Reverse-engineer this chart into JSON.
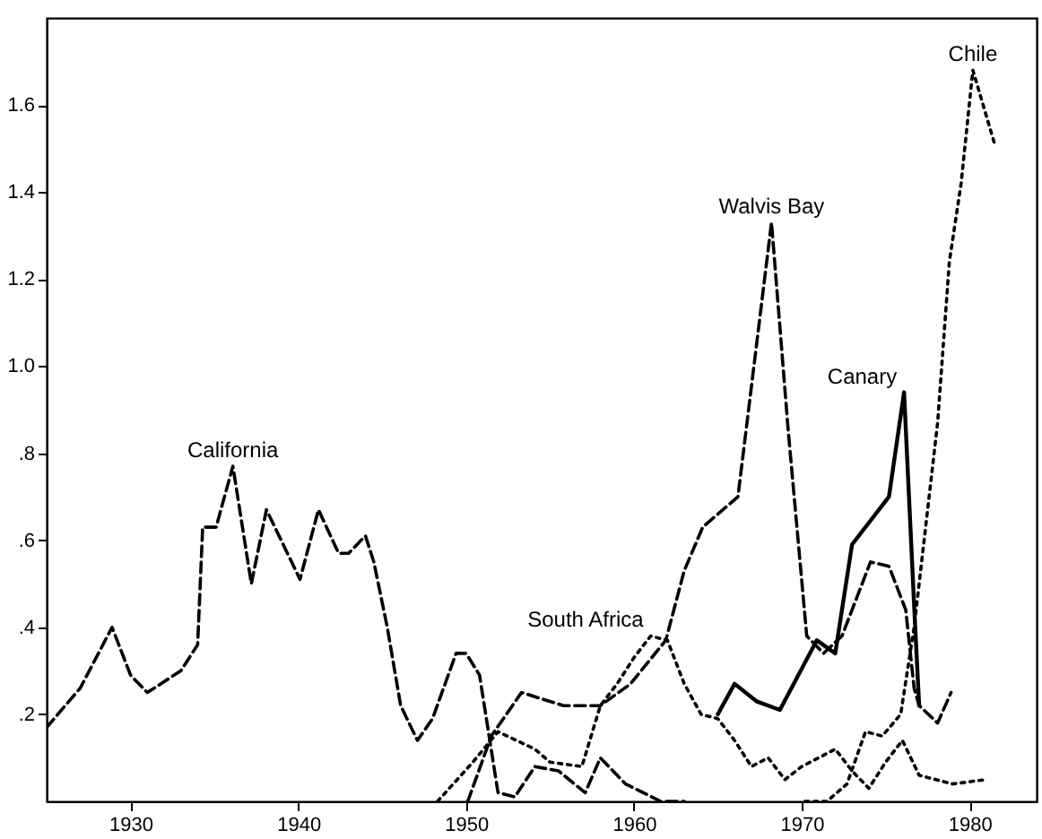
{
  "chart_data": {
    "type": "line",
    "xlim": [
      1925,
      1984
    ],
    "ylim": [
      0,
      1.8
    ],
    "xticks": [
      1930,
      1940,
      1950,
      1960,
      1970,
      1980
    ],
    "yticks": [
      {
        "value": 0.2,
        "label": ".2"
      },
      {
        "value": 0.4,
        "label": ".4"
      },
      {
        "value": 0.6,
        "label": ".6"
      },
      {
        "value": 0.8,
        "label": ".8"
      },
      {
        "value": 1.0,
        "label": "1.0"
      },
      {
        "value": 1.2,
        "label": "1.2"
      },
      {
        "value": 1.4,
        "label": "1.4"
      },
      {
        "value": 1.6,
        "label": "1.6"
      }
    ],
    "grid": false,
    "series": [
      {
        "name": "California",
        "color": "#000000",
        "line_style": "dashed",
        "x": [
          1925,
          1927,
          1928.9,
          1930,
          1931,
          1933,
          1934,
          1934.3,
          1935.1,
          1936.1,
          1937.2,
          1938.1,
          1940.1,
          1941.2,
          1942.4,
          1943,
          1944,
          1944.5,
          1945.3,
          1946.1,
          1947.1,
          1948,
          1949.4,
          1950,
          1950.8,
          1951.9,
          1952.9,
          1954.1,
          1955.5,
          1957.1,
          1958,
          1959.5,
          1961.6,
          1963
        ],
        "values": [
          0.17,
          0.26,
          0.4,
          0.29,
          0.25,
          0.3,
          0.36,
          0.63,
          0.63,
          0.77,
          0.5,
          0.67,
          0.51,
          0.67,
          0.57,
          0.57,
          0.61,
          0.55,
          0.4,
          0.22,
          0.14,
          0.19,
          0.34,
          0.34,
          0.29,
          0.02,
          0.01,
          0.08,
          0.07,
          0.02,
          0.1,
          0.04,
          0,
          0
        ]
      },
      {
        "name": "Walvis Bay",
        "color": "#000000",
        "line_style": "dashed",
        "x": [
          1950.1,
          1951.5,
          1953.3,
          1955.8,
          1958,
          1959.8,
          1961.9,
          1963,
          1964.1,
          1966.2,
          1968.2,
          1969.2,
          1970.3,
          1971.3,
          1972.4,
          1974.1,
          1975.2,
          1976.2,
          1976.7,
          1977,
          1978.1,
          1978.9
        ],
        "values": [
          0,
          0.15,
          0.25,
          0.22,
          0.22,
          0.27,
          0.37,
          0.53,
          0.63,
          0.7,
          1.33,
          0.85,
          0.38,
          0.34,
          0.38,
          0.55,
          0.54,
          0.44,
          0.26,
          0.22,
          0.18,
          0.25
        ]
      },
      {
        "name": "South Africa",
        "color": "#000000",
        "line_style": "dotted",
        "x": [
          1948.3,
          1950.4,
          1951.9,
          1954.1,
          1955,
          1956.9,
          1958,
          1959,
          1960,
          1961,
          1962,
          1963,
          1964,
          1965,
          1966,
          1967,
          1968,
          1969,
          1970,
          1971,
          1972,
          1973,
          1974,
          1975,
          1976,
          1977,
          1979,
          1981
        ],
        "values": [
          0,
          0.09,
          0.16,
          0.12,
          0.09,
          0.08,
          0.22,
          0.27,
          0.33,
          0.38,
          0.37,
          0.27,
          0.2,
          0.19,
          0.14,
          0.08,
          0.1,
          0.05,
          0.08,
          0.1,
          0.12,
          0.07,
          0.03,
          0.09,
          0.14,
          0.06,
          0.04,
          0.05
        ]
      },
      {
        "name": "Canary",
        "color": "#000000",
        "line_style": "solid",
        "x": [
          1965,
          1966,
          1967.3,
          1968.7,
          1970.9,
          1972,
          1973,
          1975.2,
          1976.1,
          1976.7,
          1977
        ],
        "values": [
          0.2,
          0.27,
          0.23,
          0.21,
          0.37,
          0.34,
          0.59,
          0.7,
          0.94,
          0.45,
          0.22
        ]
      },
      {
        "name": "Chile",
        "color": "#000000",
        "line_style": "dotted",
        "x": [
          1970.2,
          1971.5,
          1972.7,
          1973.8,
          1974.8,
          1975.9,
          1976.7,
          1978.1,
          1978.8,
          1979.5,
          1980.2,
          1981.5
        ],
        "values": [
          0,
          0,
          0.04,
          0.16,
          0.15,
          0.2,
          0.4,
          0.87,
          1.24,
          1.42,
          1.68,
          1.51
        ]
      }
    ]
  }
}
